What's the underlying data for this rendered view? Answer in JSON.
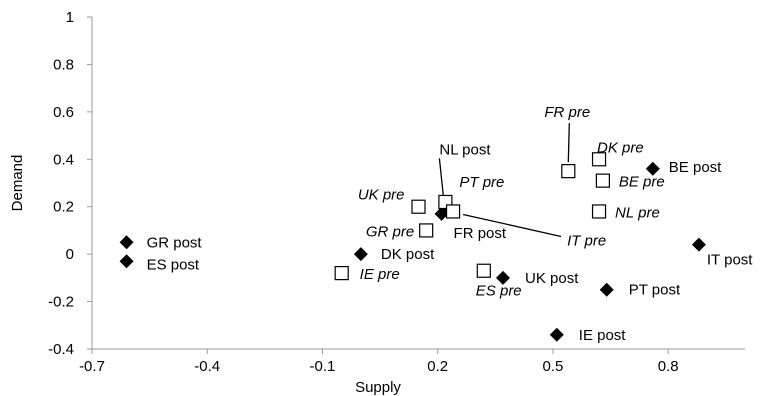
{
  "chart_data": {
    "type": "scatter",
    "xlabel": "Supply",
    "ylabel": "Demand",
    "xlim": [
      -0.7,
      1.0
    ],
    "ylim": [
      -0.4,
      1.0
    ],
    "x_ticks": [
      "-0.7",
      "-0.4",
      "-0.1",
      "0.2",
      "0.5",
      "0.8"
    ],
    "y_ticks": [
      "1",
      "0.8",
      "0.6",
      "0.4",
      "0.2",
      "0",
      "-0.2",
      "-0.4"
    ],
    "grid": false,
    "series": [
      {
        "marker": "filled-diamond",
        "points": [
          {
            "label": "GR post",
            "x": -0.61,
            "y": 0.05
          },
          {
            "label": "ES post",
            "x": -0.61,
            "y": -0.03
          },
          {
            "label": "DK post",
            "x": 0.0,
            "y": 0.0
          },
          {
            "label": "NL post",
            "x": 0.22,
            "y": 0.21
          },
          {
            "label": "FR post",
            "x": 0.21,
            "y": 0.17
          },
          {
            "label": "UK post",
            "x": 0.37,
            "y": -0.1
          },
          {
            "label": "PT post",
            "x": 0.64,
            "y": -0.15
          },
          {
            "label": "IE post",
            "x": 0.51,
            "y": -0.34
          },
          {
            "label": "BE post",
            "x": 0.76,
            "y": 0.36
          },
          {
            "label": "IT post",
            "x": 0.88,
            "y": 0.04
          }
        ]
      },
      {
        "marker": "open-square",
        "points": [
          {
            "label": "UK pre",
            "x": 0.15,
            "y": 0.2
          },
          {
            "label": "GR pre",
            "x": 0.17,
            "y": 0.1
          },
          {
            "label": "PT pre",
            "x": 0.22,
            "y": 0.22
          },
          {
            "label": "FR pre",
            "x": 0.54,
            "y": 0.35
          },
          {
            "label": "IE pre",
            "x": -0.05,
            "y": -0.08
          },
          {
            "label": "ES pre",
            "x": 0.32,
            "y": -0.07
          },
          {
            "label": "DK pre",
            "x": 0.62,
            "y": 0.4
          },
          {
            "label": "BE pre",
            "x": 0.63,
            "y": 0.31
          },
          {
            "label": "NL pre",
            "x": 0.62,
            "y": 0.18
          },
          {
            "label": "IT pre",
            "x": 0.24,
            "y": 0.18
          }
        ]
      }
    ]
  }
}
